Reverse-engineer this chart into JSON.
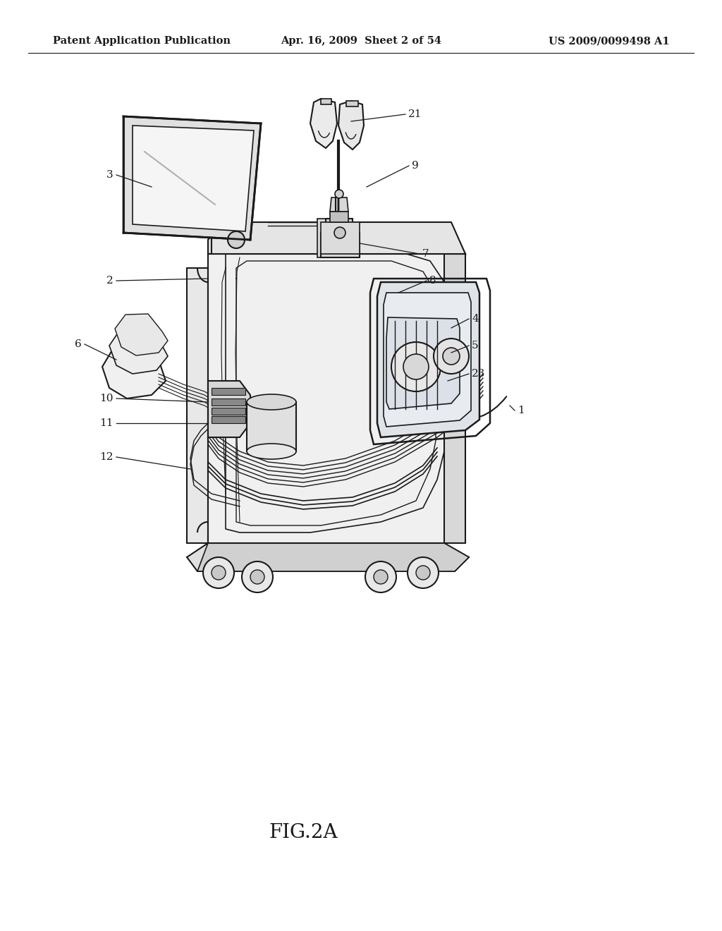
{
  "title_left": "Patent Application Publication",
  "title_center": "Apr. 16, 2009  Sheet 2 of 54",
  "title_right": "US 2009/0099498 A1",
  "figure_label": "FIG.2A",
  "background_color": "#ffffff",
  "line_color": "#1a1a1a",
  "header_fontsize": 10.5,
  "figure_label_fontsize": 20,
  "callout_fontsize": 11
}
